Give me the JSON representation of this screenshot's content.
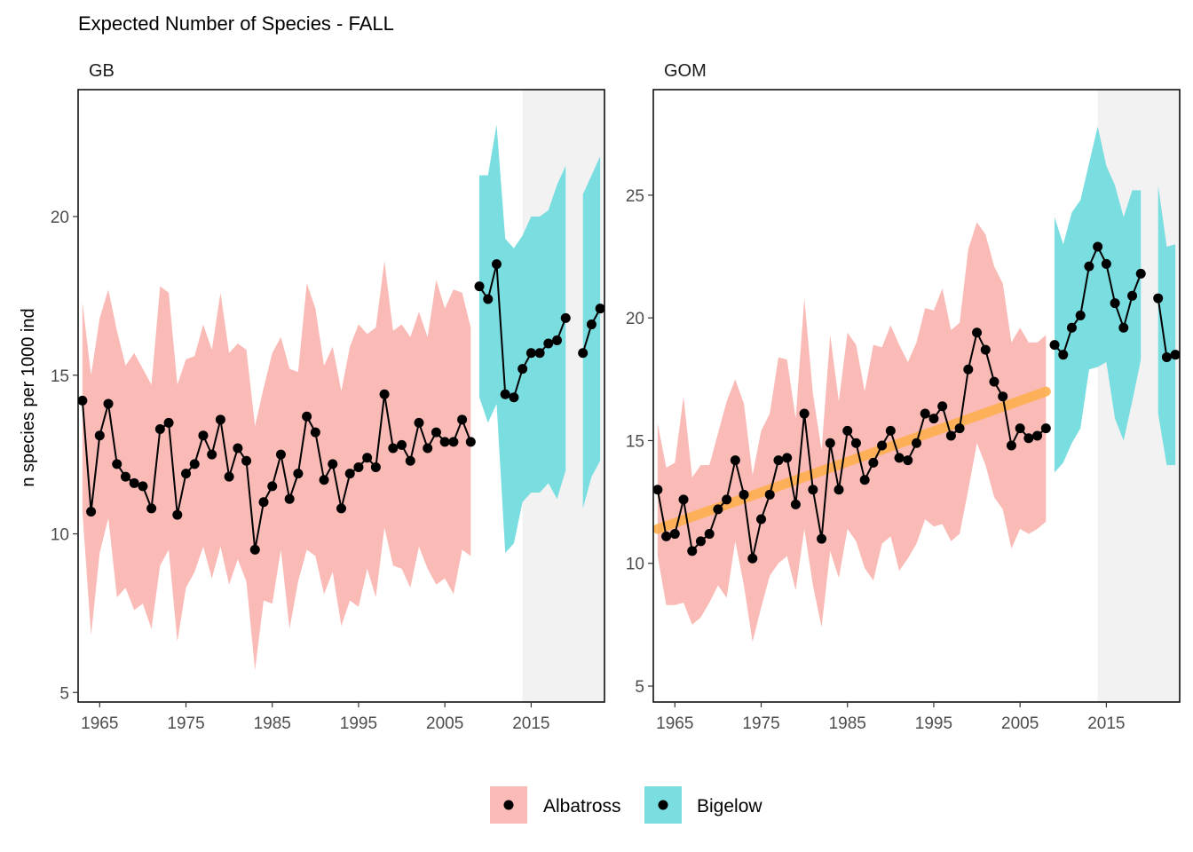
{
  "title": "Expected Number of Species - FALL",
  "ylabel": "n species per 1000 ind",
  "legend": {
    "position": "bottom",
    "items": [
      {
        "label": "Albatross",
        "color": "#F8766D"
      },
      {
        "label": "Bigelow",
        "color": "#00BFC4"
      }
    ]
  },
  "colors": {
    "albatross_ribbon": "#FABAB6",
    "bigelow_ribbon": "#7ADDE0",
    "shade": "#F2F2F2",
    "trend": "#FFB04F",
    "line": "#000000"
  },
  "chart_data": [
    {
      "type": "line",
      "panel": "GB",
      "xlim": [
        1962.5,
        2023.5
      ],
      "ylim": [
        4.7,
        24.0
      ],
      "xticks": [
        1965,
        1975,
        1985,
        1995,
        2005,
        2015
      ],
      "yticks": [
        5,
        10,
        15,
        20
      ],
      "shaded_region": [
        2014,
        2023.5
      ],
      "trend": null,
      "series": [
        {
          "name": "Albatross",
          "x": [
            1963,
            1964,
            1965,
            1966,
            1967,
            1968,
            1969,
            1970,
            1971,
            1972,
            1973,
            1974,
            1975,
            1976,
            1977,
            1978,
            1979,
            1980,
            1981,
            1982,
            1983,
            1984,
            1985,
            1986,
            1987,
            1988,
            1989,
            1990,
            1991,
            1992,
            1993,
            1994,
            1995,
            1996,
            1997,
            1998,
            1999,
            2000,
            2001,
            2002,
            2003,
            2004,
            2005,
            2006,
            2007,
            2008
          ],
          "y": [
            14.2,
            10.7,
            13.1,
            14.1,
            12.2,
            11.8,
            11.6,
            11.5,
            10.8,
            13.3,
            13.5,
            10.6,
            11.9,
            12.2,
            13.1,
            12.5,
            13.6,
            11.8,
            12.7,
            12.3,
            9.5,
            11.0,
            11.5,
            12.5,
            11.1,
            11.9,
            13.7,
            13.2,
            11.7,
            12.2,
            10.8,
            11.9,
            12.1,
            12.4,
            12.1,
            14.4,
            12.7,
            12.8,
            12.3,
            13.5,
            12.7,
            13.2,
            12.9,
            12.9,
            13.6,
            12.9
          ],
          "upper": [
            17.3,
            15.0,
            16.8,
            17.7,
            16.4,
            15.3,
            15.7,
            15.2,
            14.7,
            17.8,
            17.6,
            14.7,
            15.5,
            15.6,
            16.6,
            15.8,
            17.6,
            15.7,
            16.0,
            15.8,
            13.4,
            14.6,
            15.7,
            16.2,
            15.2,
            15.1,
            17.9,
            17.1,
            15.3,
            15.9,
            14.5,
            15.9,
            16.6,
            16.3,
            16.5,
            18.6,
            16.4,
            16.6,
            16.2,
            17.0,
            16.2,
            18.0,
            17.1,
            17.7,
            17.6,
            16.5
          ],
          "lower": [
            10.7,
            6.8,
            9.4,
            10.5,
            8.0,
            8.3,
            7.6,
            7.8,
            7.0,
            9.0,
            9.5,
            6.6,
            8.3,
            8.8,
            9.6,
            8.6,
            9.6,
            8.4,
            9.2,
            8.5,
            5.7,
            7.9,
            7.8,
            9.5,
            7.0,
            8.5,
            9.5,
            9.3,
            8.1,
            8.8,
            7.1,
            7.9,
            7.7,
            8.9,
            8.0,
            10.2,
            9.0,
            8.9,
            8.3,
            9.6,
            8.9,
            8.4,
            8.6,
            8.1,
            9.5,
            9.3
          ]
        },
        {
          "name": "Bigelow",
          "x": [
            2009,
            2010,
            2011,
            2012,
            2013,
            2014,
            2015,
            2016,
            2017,
            2018,
            2019,
            2020,
            2021,
            2022,
            2023
          ],
          "y": [
            17.8,
            17.4,
            18.5,
            14.4,
            14.3,
            15.2,
            15.7,
            15.7,
            16.0,
            16.1,
            16.8,
            null,
            15.7,
            16.6,
            17.1
          ],
          "upper": [
            21.3,
            21.3,
            22.9,
            19.3,
            19.0,
            19.4,
            20.0,
            20.0,
            20.2,
            21.0,
            21.6,
            null,
            20.7,
            21.3,
            21.9
          ],
          "lower": [
            14.3,
            13.5,
            14.1,
            9.4,
            9.7,
            11.0,
            11.3,
            11.3,
            11.6,
            11.1,
            12.0,
            null,
            10.8,
            11.8,
            12.3
          ]
        }
      ]
    },
    {
      "type": "line",
      "panel": "GOM",
      "xlim": [
        1962.5,
        2023.5
      ],
      "ylim": [
        4.35,
        29.3
      ],
      "xticks": [
        1965,
        1975,
        1985,
        1995,
        2005,
        2015
      ],
      "yticks": [
        5,
        10,
        15,
        20,
        25
      ],
      "shaded_region": [
        2014,
        2023.5
      ],
      "trend": {
        "x": [
          1963,
          2008
        ],
        "y": [
          11.4,
          17.0
        ]
      },
      "series": [
        {
          "name": "Albatross",
          "x": [
            1963,
            1964,
            1965,
            1966,
            1967,
            1968,
            1969,
            1970,
            1971,
            1972,
            1973,
            1974,
            1975,
            1976,
            1977,
            1978,
            1979,
            1980,
            1981,
            1982,
            1983,
            1984,
            1985,
            1986,
            1987,
            1988,
            1989,
            1990,
            1991,
            1992,
            1993,
            1994,
            1995,
            1996,
            1997,
            1998,
            1999,
            2000,
            2001,
            2002,
            2003,
            2004,
            2005,
            2006,
            2007,
            2008
          ],
          "y": [
            13.0,
            11.1,
            11.2,
            12.6,
            10.5,
            10.9,
            11.2,
            12.2,
            12.6,
            14.2,
            12.8,
            10.2,
            11.8,
            12.8,
            14.2,
            14.3,
            12.4,
            16.1,
            13.0,
            11.0,
            14.9,
            13.0,
            15.4,
            14.9,
            13.4,
            14.1,
            14.8,
            15.4,
            14.3,
            14.2,
            14.9,
            16.1,
            15.9,
            16.4,
            15.2,
            15.5,
            17.9,
            19.4,
            18.7,
            17.4,
            16.8,
            14.8,
            15.5,
            15.1,
            15.2,
            15.5
          ],
          "upper": [
            15.7,
            13.9,
            14.1,
            16.8,
            13.5,
            14.0,
            14.0,
            15.3,
            16.6,
            17.5,
            16.5,
            13.6,
            15.4,
            16.1,
            18.4,
            18.3,
            15.9,
            20.8,
            16.9,
            14.6,
            19.3,
            16.6,
            19.4,
            18.9,
            17.0,
            18.9,
            18.8,
            19.7,
            18.9,
            18.2,
            19.0,
            20.4,
            20.3,
            21.2,
            19.5,
            19.8,
            22.8,
            23.9,
            23.4,
            22.1,
            21.4,
            19.0,
            19.6,
            19.0,
            19.0,
            19.3
          ],
          "lower": [
            10.3,
            8.3,
            8.3,
            8.4,
            7.5,
            7.8,
            8.4,
            9.1,
            8.6,
            10.9,
            9.1,
            6.8,
            8.2,
            9.5,
            10.0,
            10.3,
            8.9,
            11.4,
            9.1,
            7.4,
            10.5,
            9.4,
            11.4,
            10.9,
            9.8,
            9.3,
            10.8,
            11.1,
            9.7,
            10.2,
            10.8,
            11.8,
            11.5,
            11.6,
            10.9,
            11.2,
            13.0,
            14.9,
            14.0,
            12.7,
            12.2,
            10.6,
            11.4,
            11.2,
            11.4,
            11.7
          ]
        },
        {
          "name": "Bigelow",
          "x": [
            2009,
            2010,
            2011,
            2012,
            2013,
            2014,
            2015,
            2016,
            2017,
            2018,
            2019,
            2020,
            2021,
            2022,
            2023
          ],
          "y": [
            18.9,
            18.5,
            19.6,
            20.1,
            22.1,
            22.9,
            22.2,
            20.6,
            19.6,
            20.9,
            21.8,
            null,
            20.8,
            18.4,
            18.5
          ],
          "upper": [
            24.1,
            23.0,
            24.3,
            24.8,
            26.3,
            27.8,
            26.2,
            25.4,
            24.1,
            25.2,
            25.2,
            null,
            25.4,
            22.9,
            23.0
          ],
          "lower": [
            13.7,
            14.1,
            14.9,
            15.5,
            17.9,
            18.0,
            18.2,
            15.9,
            15.0,
            16.6,
            18.3,
            null,
            16.1,
            14.0,
            14.0
          ]
        }
      ]
    }
  ]
}
